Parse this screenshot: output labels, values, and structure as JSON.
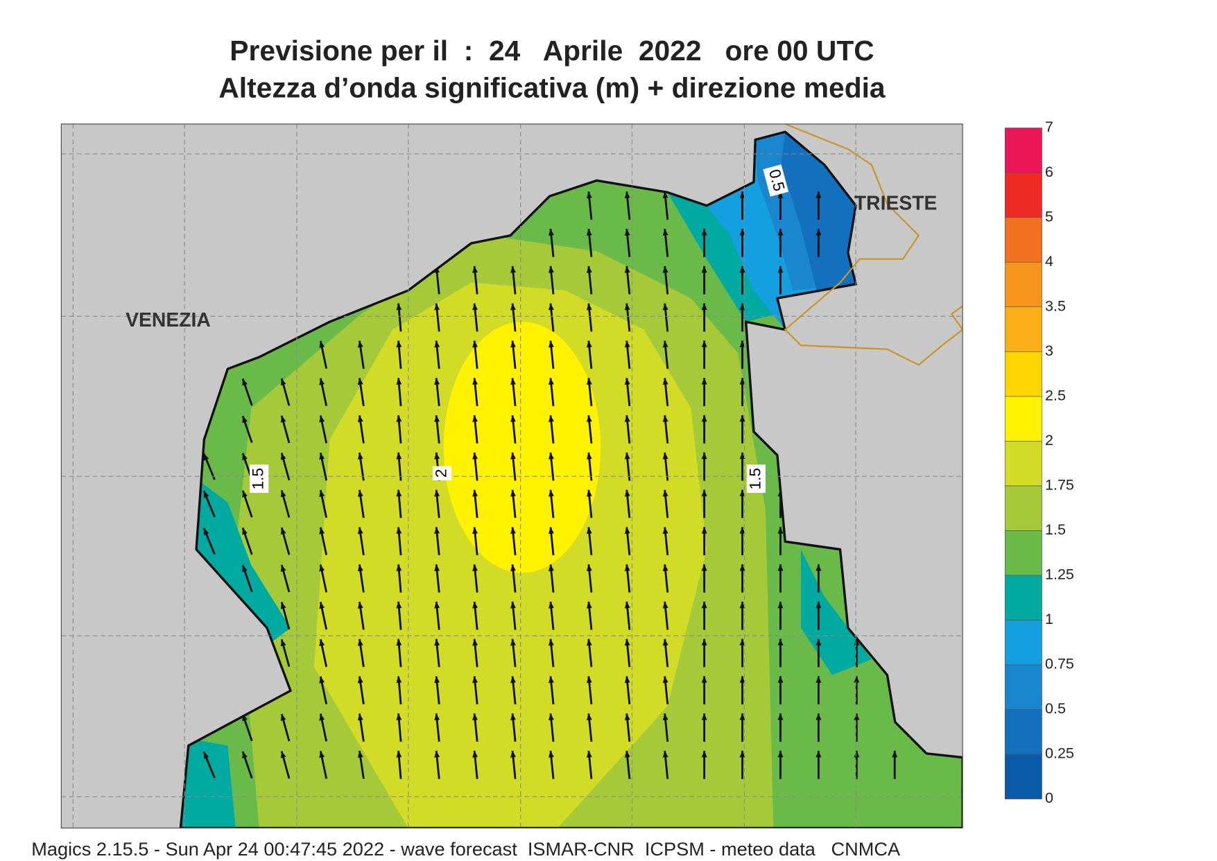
{
  "header": {
    "title": "Previsione per il  :  24   Aprile  2022   ore 00 UTC",
    "subtitle": "Altezza d’onda significativa (m) + direzione media"
  },
  "map": {
    "cities": [
      "VENEZIA",
      "TRIESTE"
    ],
    "contour_labels": [
      "0.5",
      "1.5",
      "2",
      "1.5"
    ]
  },
  "legend": {
    "levels": [
      0,
      0.25,
      0.5,
      0.75,
      1,
      1.25,
      1.5,
      1.75,
      2,
      2.5,
      3,
      3.5,
      4,
      5,
      6,
      7
    ],
    "colors": [
      "#0a5aa8",
      "#1270be",
      "#1a86cf",
      "#14a0e0",
      "#00aaa0",
      "#6aba4a",
      "#a6c93a",
      "#d2dc26",
      "#fff200",
      "#ffd500",
      "#fbb018",
      "#f7941d",
      "#f37021",
      "#ee2a24",
      "#ec1557"
    ]
  },
  "footer": "Magics 2.15.5 - Sun Apr 24 00:47:45 2022 - wave forecast  ISMAR-CNR  ICPSM - meteo data   CNMCA"
}
